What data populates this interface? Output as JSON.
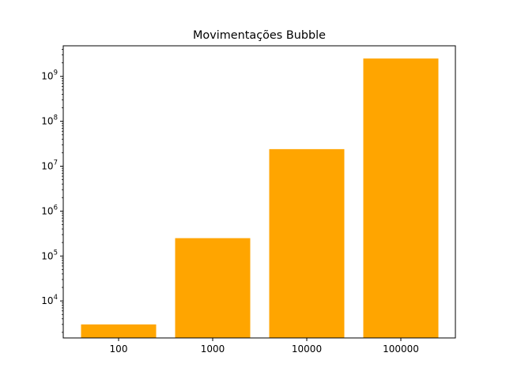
{
  "chart_data": {
    "type": "bar",
    "title": "Movimentações Bubble",
    "xlabel": "",
    "ylabel": "",
    "categories": [
      "100",
      "1000",
      "10000",
      "100000"
    ],
    "values": [
      3000,
      250000,
      24000000,
      2500000000
    ],
    "yscale": "log",
    "ylim": [
      1500,
      4800000000
    ],
    "yticks": [
      10000,
      100000,
      1000000,
      10000000,
      100000000,
      1000000000
    ],
    "ytick_labels": [
      {
        "base": "10",
        "exp": "4"
      },
      {
        "base": "10",
        "exp": "5"
      },
      {
        "base": "10",
        "exp": "6"
      },
      {
        "base": "10",
        "exp": "7"
      },
      {
        "base": "10",
        "exp": "8"
      },
      {
        "base": "10",
        "exp": "9"
      }
    ],
    "grid": false,
    "legend": "none",
    "colors": {
      "bar": "#ffa500",
      "axes": "#000000",
      "background": "#ffffff"
    }
  }
}
